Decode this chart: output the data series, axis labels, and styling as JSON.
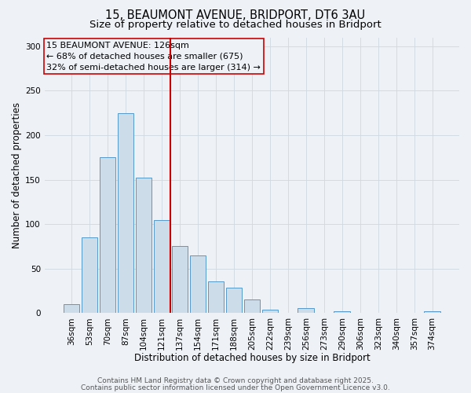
{
  "title": "15, BEAUMONT AVENUE, BRIDPORT, DT6 3AU",
  "subtitle": "Size of property relative to detached houses in Bridport",
  "xlabel": "Distribution of detached houses by size in Bridport",
  "ylabel": "Number of detached properties",
  "bar_labels": [
    "36sqm",
    "53sqm",
    "70sqm",
    "87sqm",
    "104sqm",
    "121sqm",
    "137sqm",
    "154sqm",
    "171sqm",
    "188sqm",
    "205sqm",
    "222sqm",
    "239sqm",
    "256sqm",
    "273sqm",
    "290sqm",
    "306sqm",
    "323sqm",
    "340sqm",
    "357sqm",
    "374sqm"
  ],
  "bar_values": [
    10,
    85,
    175,
    225,
    152,
    105,
    75,
    65,
    36,
    29,
    15,
    4,
    0,
    6,
    0,
    2,
    0,
    0,
    0,
    0,
    2
  ],
  "bar_color": "#ccdce8",
  "bar_edgecolor": "#5599cc",
  "vline_x": 5.5,
  "vline_color": "#cc0000",
  "ylim": [
    0,
    310
  ],
  "yticks": [
    0,
    50,
    100,
    150,
    200,
    250,
    300
  ],
  "annotation_title": "15 BEAUMONT AVENUE: 126sqm",
  "annotation_line1": "← 68% of detached houses are smaller (675)",
  "annotation_line2": "32% of semi-detached houses are larger (314) →",
  "annotation_box_color": "#cc0000",
  "footer1": "Contains HM Land Registry data © Crown copyright and database right 2025.",
  "footer2": "Contains public sector information licensed under the Open Government Licence v3.0.",
  "background_color": "#eef2f7",
  "title_fontsize": 10.5,
  "subtitle_fontsize": 9.5,
  "axis_label_fontsize": 8.5,
  "tick_fontsize": 7.5,
  "annotation_fontsize": 8,
  "footer_fontsize": 6.5
}
